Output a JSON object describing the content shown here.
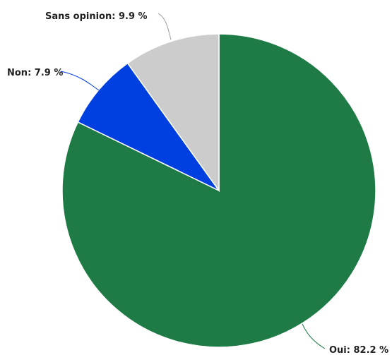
{
  "chart_data": {
    "type": "pie",
    "title": "",
    "slices": [
      {
        "label": "Oui",
        "value": 82.2,
        "color": "#1e7b45",
        "display": "Oui: 82.2 %"
      },
      {
        "label": "Non",
        "value": 7.9,
        "color": "#0040e0",
        "display": "Non: 7.9 %"
      },
      {
        "label": "Sans opinion",
        "value": 9.9,
        "color": "#cccccc",
        "display": "Sans opinion: 9.9 %"
      }
    ],
    "start": "top",
    "direction": "clockwise",
    "legend": "none",
    "data_labels": "outside with connector lines"
  }
}
